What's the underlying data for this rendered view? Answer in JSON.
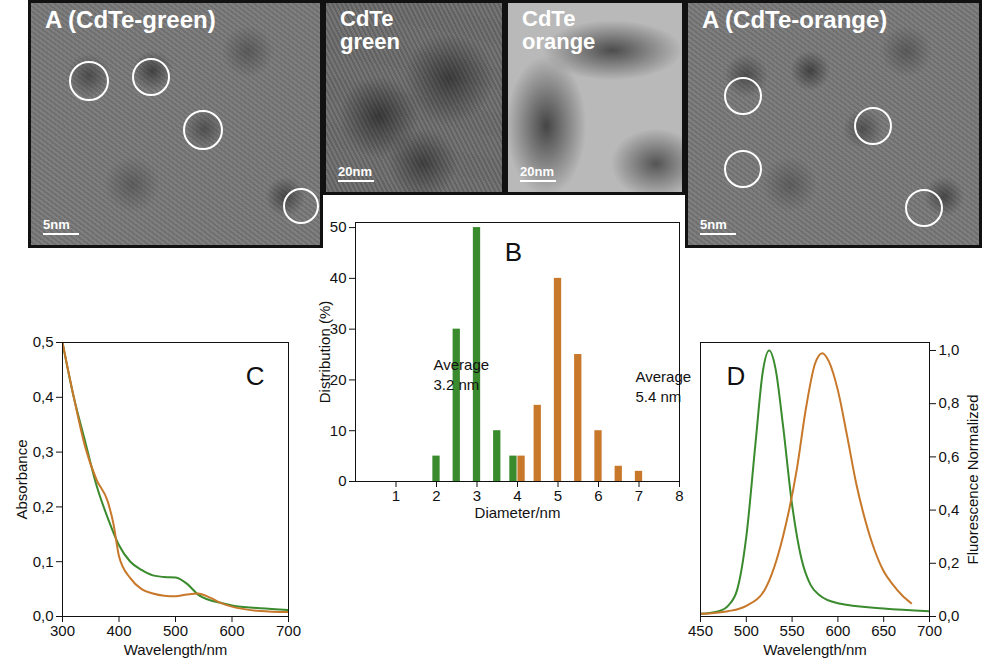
{
  "chart_data": [
    {
      "type": "bar",
      "label": "B",
      "x_label": "Diameter/nm",
      "y_label": "Distribution (%)",
      "xlim": [
        0,
        8
      ],
      "xticks": [
        1,
        2,
        3,
        4,
        5,
        6,
        7,
        8
      ],
      "ylim": [
        0,
        51
      ],
      "yticks": [
        0,
        10,
        20,
        30,
        40,
        50
      ],
      "series": [
        {
          "color": "#3a8a2e",
          "x": [
            2,
            2.5,
            3,
            3.5,
            3.9
          ],
          "values": [
            5,
            30,
            50,
            10,
            5
          ]
        },
        {
          "color": "#c8782a",
          "x": [
            4.1,
            4.5,
            5,
            5.5,
            6,
            6.5,
            7
          ],
          "values": [
            5,
            15,
            40,
            25,
            10,
            3,
            2
          ]
        }
      ],
      "annotations": [
        "Average\n3.2 nm",
        "Average\n5.4 nm"
      ]
    },
    {
      "type": "line",
      "label": "C",
      "x_label": "Wavelength/nm",
      "y_label": "Absorbance",
      "xlim": [
        300,
        700
      ],
      "xticks": [
        300,
        400,
        500,
        600,
        700
      ],
      "ylim": [
        0,
        0.5
      ],
      "yticks": [
        {
          "value": 0,
          "label": "0,0"
        },
        {
          "value": 0.1,
          "label": "0,1"
        },
        {
          "value": 0.2,
          "label": "0,2"
        },
        {
          "value": 0.3,
          "label": "0,3"
        },
        {
          "value": 0.4,
          "label": "0,4"
        },
        {
          "value": 0.5,
          "label": "0,5"
        }
      ],
      "series": [
        {
          "color": "#3a8a2e",
          "x": [
            300,
            320,
            340,
            360,
            380,
            400,
            420,
            440,
            460,
            480,
            500,
            520,
            540,
            560,
            580,
            600,
            650,
            700
          ],
          "values": [
            0.5,
            0.4,
            0.32,
            0.24,
            0.18,
            0.13,
            0.1,
            0.085,
            0.075,
            0.072,
            0.071,
            0.06,
            0.04,
            0.03,
            0.025,
            0.02,
            0.015,
            0.012
          ]
        },
        {
          "color": "#c8782a",
          "x": [
            300,
            320,
            340,
            360,
            380,
            390,
            400,
            420,
            440,
            460,
            480,
            500,
            520,
            540,
            560,
            580,
            600,
            650,
            700
          ],
          "values": [
            0.5,
            0.4,
            0.31,
            0.25,
            0.21,
            0.17,
            0.11,
            0.07,
            0.05,
            0.042,
            0.038,
            0.037,
            0.04,
            0.042,
            0.035,
            0.025,
            0.018,
            0.01,
            0.008
          ]
        }
      ]
    },
    {
      "type": "line",
      "label": "D",
      "x_label": "Wavelength/nm",
      "y_label": "Fluorescence Normalized",
      "xlim": [
        450,
        700
      ],
      "xticks": [
        450,
        500,
        550,
        600,
        650,
        700
      ],
      "ylim": [
        0,
        1.03
      ],
      "yticks": [
        {
          "value": 0,
          "label": "0,0"
        },
        {
          "value": 0.2,
          "label": "0,2"
        },
        {
          "value": 0.4,
          "label": "0,4"
        },
        {
          "value": 0.6,
          "label": "0,6"
        },
        {
          "value": 0.8,
          "label": "0,8"
        },
        {
          "value": 1,
          "label": "1,0"
        }
      ],
      "series": [
        {
          "color": "#3a8a2e",
          "x": [
            450,
            470,
            480,
            490,
            500,
            510,
            518,
            525,
            532,
            540,
            550,
            560,
            570,
            580,
            600,
            650,
            700
          ],
          "values": [
            0.01,
            0.02,
            0.04,
            0.1,
            0.3,
            0.65,
            0.92,
            1.0,
            0.93,
            0.72,
            0.42,
            0.22,
            0.12,
            0.08,
            0.05,
            0.03,
            0.02
          ]
        },
        {
          "color": "#c8782a",
          "x": [
            450,
            480,
            500,
            520,
            540,
            555,
            565,
            575,
            583,
            590,
            600,
            610,
            620,
            630,
            640,
            650,
            660,
            670,
            680
          ],
          "values": [
            0.01,
            0.02,
            0.04,
            0.1,
            0.3,
            0.55,
            0.78,
            0.95,
            0.99,
            0.96,
            0.85,
            0.68,
            0.5,
            0.36,
            0.25,
            0.17,
            0.12,
            0.08,
            0.05
          ]
        }
      ]
    }
  ],
  "images": [
    {
      "title": "A (CdTe-green)",
      "scale_bar": "5nm"
    },
    {
      "title": "CdTe\ngreen",
      "scale_bar": "20nm"
    },
    {
      "title": "CdTe\norange",
      "scale_bar": "20nm"
    },
    {
      "title": "A (CdTe-orange)",
      "scale_bar": "5nm"
    }
  ]
}
